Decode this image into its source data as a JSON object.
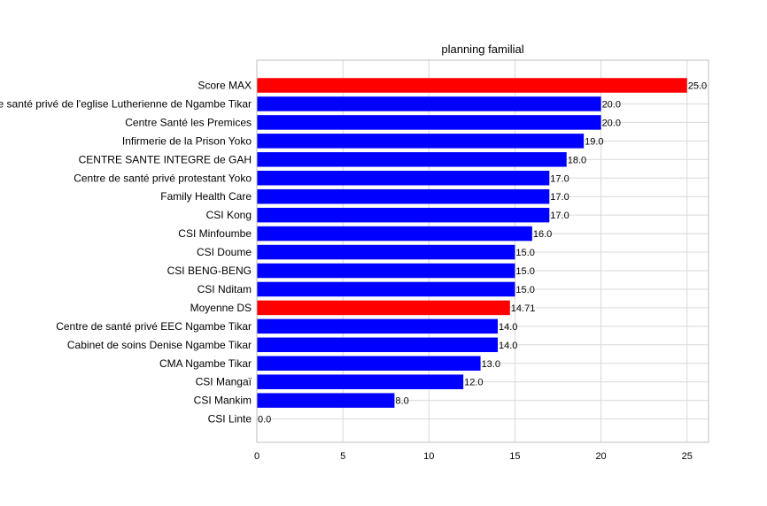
{
  "chart_data": {
    "type": "bar",
    "orientation": "horizontal",
    "title": "planning familial",
    "xlabel": "",
    "ylabel": "",
    "xlim": [
      0,
      26.25
    ],
    "xticks": [
      0,
      5,
      10,
      15,
      20,
      25
    ],
    "grid": true,
    "categories": [
      "Score MAX",
      "Centre de santé privé  de l'eglise Lutherienne de Ngambe Tikar",
      "Centre Santé les Premices",
      "Infirmerie de la Prison Yoko",
      "CENTRE SANTE INTEGRE  de GAH",
      "Centre de santé privé protestant Yoko",
      "Family Health Care",
      "CSI Kong",
      "CSI Minfoumbe",
      "CSI Doume",
      "CSI BENG-BENG",
      "CSI Nditam",
      "Moyenne DS",
      "Centre de santé privé EEC Ngambe Tikar",
      "Cabinet de soins Denise Ngambe Tikar",
      "CMA Ngambe Tikar",
      "CSI Mangaï",
      "CSI Mankim",
      "CSI Linte"
    ],
    "values": [
      25.0,
      20.0,
      20.0,
      19.0,
      18.0,
      17.0,
      17.0,
      17.0,
      16.0,
      15.0,
      15.0,
      15.0,
      14.71,
      14.0,
      14.0,
      13.0,
      12.0,
      8.0,
      0.0
    ],
    "value_labels": [
      "25.0",
      "20.0",
      "20.0",
      "19.0",
      "18.0",
      "17.0",
      "17.0",
      "17.0",
      "16.0",
      "15.0",
      "15.0",
      "15.0",
      "14.71",
      "14.0",
      "14.0",
      "13.0",
      "12.0",
      "8.0",
      "0.0"
    ],
    "bar_colors": [
      "#ff0000",
      "#0000ff",
      "#0000ff",
      "#0000ff",
      "#0000ff",
      "#0000ff",
      "#0000ff",
      "#0000ff",
      "#0000ff",
      "#0000ff",
      "#0000ff",
      "#0000ff",
      "#ff0000",
      "#0000ff",
      "#0000ff",
      "#0000ff",
      "#0000ff",
      "#0000ff",
      "#0000ff"
    ]
  },
  "colors": {
    "highlight": "#ff0000",
    "default_bar": "#0000ff",
    "grid": "#d9d9d9",
    "axes": "#bfbfbf"
  }
}
